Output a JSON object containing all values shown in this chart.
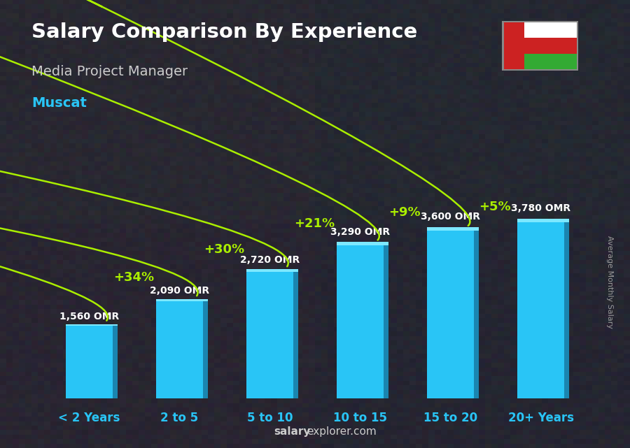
{
  "title": "Salary Comparison By Experience",
  "subtitle": "Media Project Manager",
  "city": "Muscat",
  "categories": [
    "< 2 Years",
    "2 to 5",
    "5 to 10",
    "10 to 15",
    "15 to 20",
    "20+ Years"
  ],
  "values": [
    1560,
    2090,
    2720,
    3290,
    3600,
    3780
  ],
  "labels": [
    "1,560 OMR",
    "2,090 OMR",
    "2,720 OMR",
    "3,290 OMR",
    "3,600 OMR",
    "3,780 OMR"
  ],
  "pct_changes": [
    "+34%",
    "+30%",
    "+21%",
    "+9%",
    "+5%"
  ],
  "bar_face_color": "#29c5f6",
  "bar_side_color": "#1a85b0",
  "bar_top_color": "#7de8ff",
  "background_color": "#404050",
  "title_color": "#ffffff",
  "subtitle_color": "#cccccc",
  "city_color": "#29c5f6",
  "label_color": "#ffffff",
  "pct_color": "#aaee00",
  "xtick_color": "#29c5f6",
  "ylabel_text": "Average Monthly Salary",
  "footer_salary": "salary",
  "footer_rest": "explorer.com",
  "ylim": [
    0,
    4800
  ]
}
